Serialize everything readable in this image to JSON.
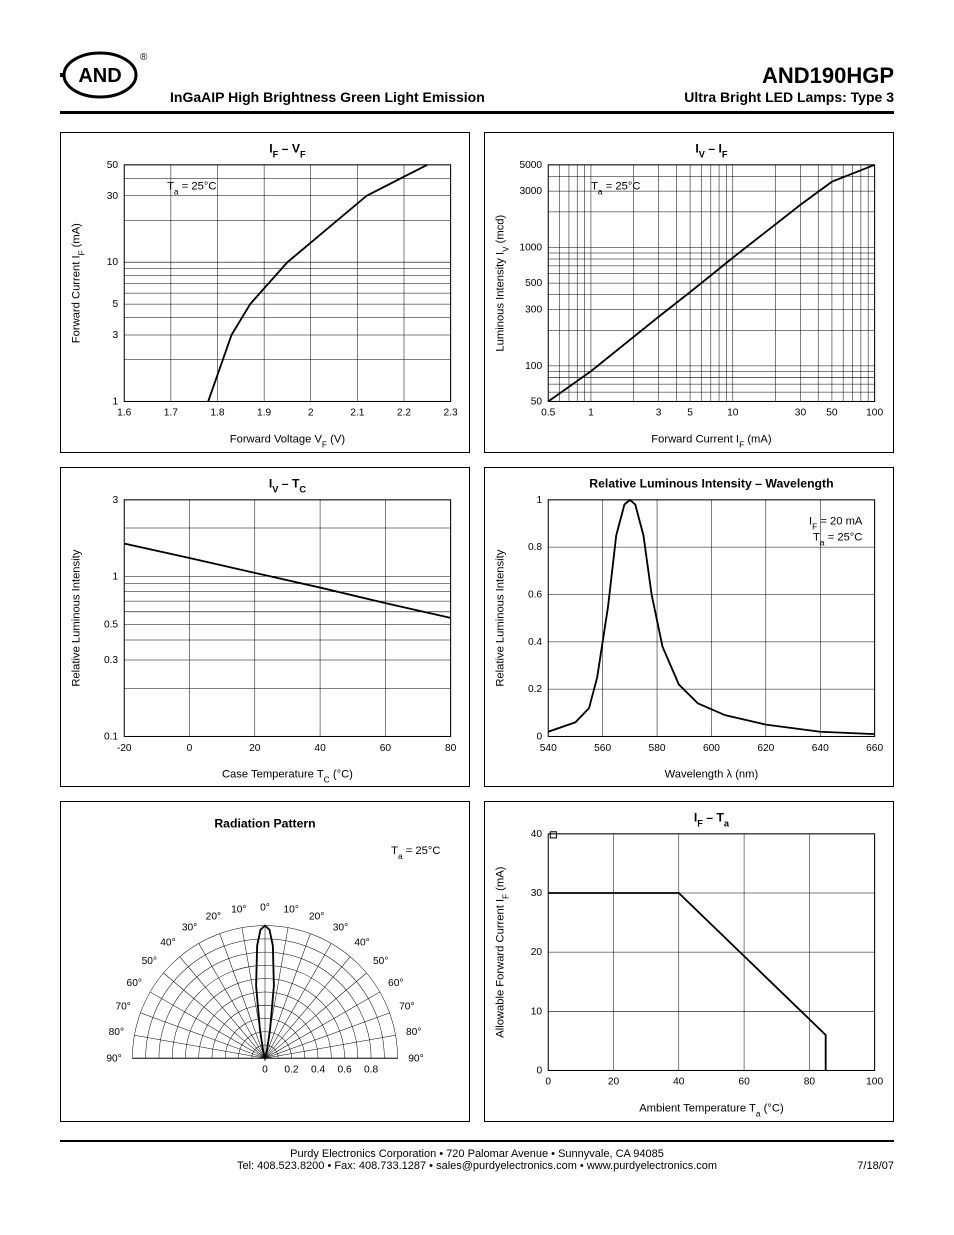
{
  "header": {
    "logo_text": "AND",
    "reg": "®",
    "subtitle": "InGaAIP High Brightness Green Light Emission",
    "part": "AND190HGP",
    "type": "Ultra Bright LED Lamps: Type 3"
  },
  "footer": {
    "line1": "Purdy Electronics Corporation  •  720 Palomar Avenue  •  Sunnyvale, CA 94085",
    "line2": "Tel: 408.523.8200  •  Fax: 408.733.1287  •  sales@purdyelectronics.com  •  www.purdyelectronics.com",
    "date": "7/18/07"
  },
  "colors": {
    "line": "#000000",
    "grid": "#000000",
    "bg": "#ffffff"
  },
  "charts": {
    "if_vf": {
      "title": "I_F – V_F",
      "note": "T_a = 25°C",
      "xlabel": "Forward Voltage V_F  (V)",
      "ylabel": "Forward Current  I_F  (mA)",
      "xlim": [
        1.6,
        2.3
      ],
      "xticks": [
        1.6,
        1.7,
        1.8,
        1.9,
        2.0,
        2.1,
        2.2,
        2.3
      ],
      "yticks": [
        1,
        3,
        5,
        10,
        30,
        50
      ],
      "yscale": "log",
      "points": [
        [
          1.78,
          1
        ],
        [
          1.83,
          3
        ],
        [
          1.87,
          5
        ],
        [
          1.95,
          10
        ],
        [
          2.12,
          30
        ],
        [
          2.25,
          50
        ]
      ]
    },
    "iv_if": {
      "title": "I_V – I_F",
      "note": "T_a = 25°C",
      "xlabel": "Forward Current I_F  (mA)",
      "ylabel": "Luminous Intensity  I_V  (mcd)",
      "xlim": [
        0.5,
        100
      ],
      "xticks": [
        0.5,
        1,
        3,
        5,
        10,
        30,
        50,
        100
      ],
      "yticks": [
        50,
        100,
        300,
        500,
        1000,
        3000,
        5000
      ],
      "xscale": "log",
      "yscale": "log",
      "points": [
        [
          0.5,
          50
        ],
        [
          1,
          90
        ],
        [
          3,
          260
        ],
        [
          5,
          420
        ],
        [
          10,
          820
        ],
        [
          30,
          2300
        ],
        [
          50,
          3600
        ],
        [
          100,
          5000
        ]
      ]
    },
    "iv_tc": {
      "title": "I_V – T_C",
      "xlabel": "Case Temperature T_C  (°C)",
      "ylabel": "Relative Luminous Intensity",
      "xlim": [
        -20,
        80
      ],
      "xticks": [
        -20,
        0,
        20,
        40,
        60,
        80
      ],
      "yticks": [
        0.1,
        0.3,
        0.5,
        1,
        3
      ],
      "yscale": "log",
      "points": [
        [
          -20,
          1.6
        ],
        [
          0,
          1.3
        ],
        [
          20,
          1.05
        ],
        [
          40,
          0.85
        ],
        [
          60,
          0.68
        ],
        [
          80,
          0.55
        ]
      ]
    },
    "wavelength": {
      "title": "Relative Luminous Intensity – Wavelength",
      "note1": "I_F = 20 mA",
      "note2": "T_a = 25°C",
      "xlabel": "Wavelength  λ  (nm)",
      "ylabel": "Relative Luminous Intensity",
      "xlim": [
        540,
        660
      ],
      "xticks": [
        540,
        560,
        580,
        600,
        620,
        640,
        660
      ],
      "ylim": [
        0,
        1.0
      ],
      "yticks": [
        0,
        0.2,
        0.4,
        0.6,
        0.8,
        1.0
      ],
      "points": [
        [
          540,
          0.02
        ],
        [
          550,
          0.06
        ],
        [
          555,
          0.12
        ],
        [
          558,
          0.25
        ],
        [
          562,
          0.55
        ],
        [
          565,
          0.85
        ],
        [
          568,
          0.98
        ],
        [
          570,
          1.0
        ],
        [
          572,
          0.98
        ],
        [
          575,
          0.85
        ],
        [
          578,
          0.6
        ],
        [
          582,
          0.38
        ],
        [
          588,
          0.22
        ],
        [
          595,
          0.14
        ],
        [
          605,
          0.09
        ],
        [
          620,
          0.05
        ],
        [
          640,
          0.02
        ],
        [
          660,
          0.01
        ]
      ]
    },
    "radiation": {
      "title": "Radiation Pattern",
      "note": "T_a = 25°C",
      "angle_labels": [
        "0°",
        "10°",
        "20°",
        "30°",
        "40°",
        "50°",
        "60°",
        "70°",
        "80°",
        "90°"
      ],
      "radial_ticks": [
        0,
        0.2,
        0.4,
        0.6,
        0.8
      ],
      "rings": 10,
      "pattern": [
        [
          -90,
          0
        ],
        [
          -15,
          0.05
        ],
        [
          -10,
          0.22
        ],
        [
          -7,
          0.55
        ],
        [
          -4,
          0.85
        ],
        [
          -2,
          0.97
        ],
        [
          0,
          1.0
        ],
        [
          2,
          0.97
        ],
        [
          4,
          0.85
        ],
        [
          7,
          0.55
        ],
        [
          10,
          0.22
        ],
        [
          15,
          0.05
        ],
        [
          90,
          0
        ]
      ]
    },
    "if_ta": {
      "title": "I_F – T_a",
      "xlabel": "Ambient Temperature  T_a (°C)",
      "ylabel": "Allowable Forward Current I_F  (mA)",
      "xlim": [
        0,
        100
      ],
      "xticks": [
        0,
        20,
        40,
        60,
        80,
        100
      ],
      "ylim": [
        0,
        40
      ],
      "yticks": [
        0,
        10,
        20,
        30,
        40
      ],
      "points": [
        [
          0,
          30
        ],
        [
          40,
          30
        ],
        [
          85,
          6
        ],
        [
          85,
          0
        ]
      ]
    }
  }
}
